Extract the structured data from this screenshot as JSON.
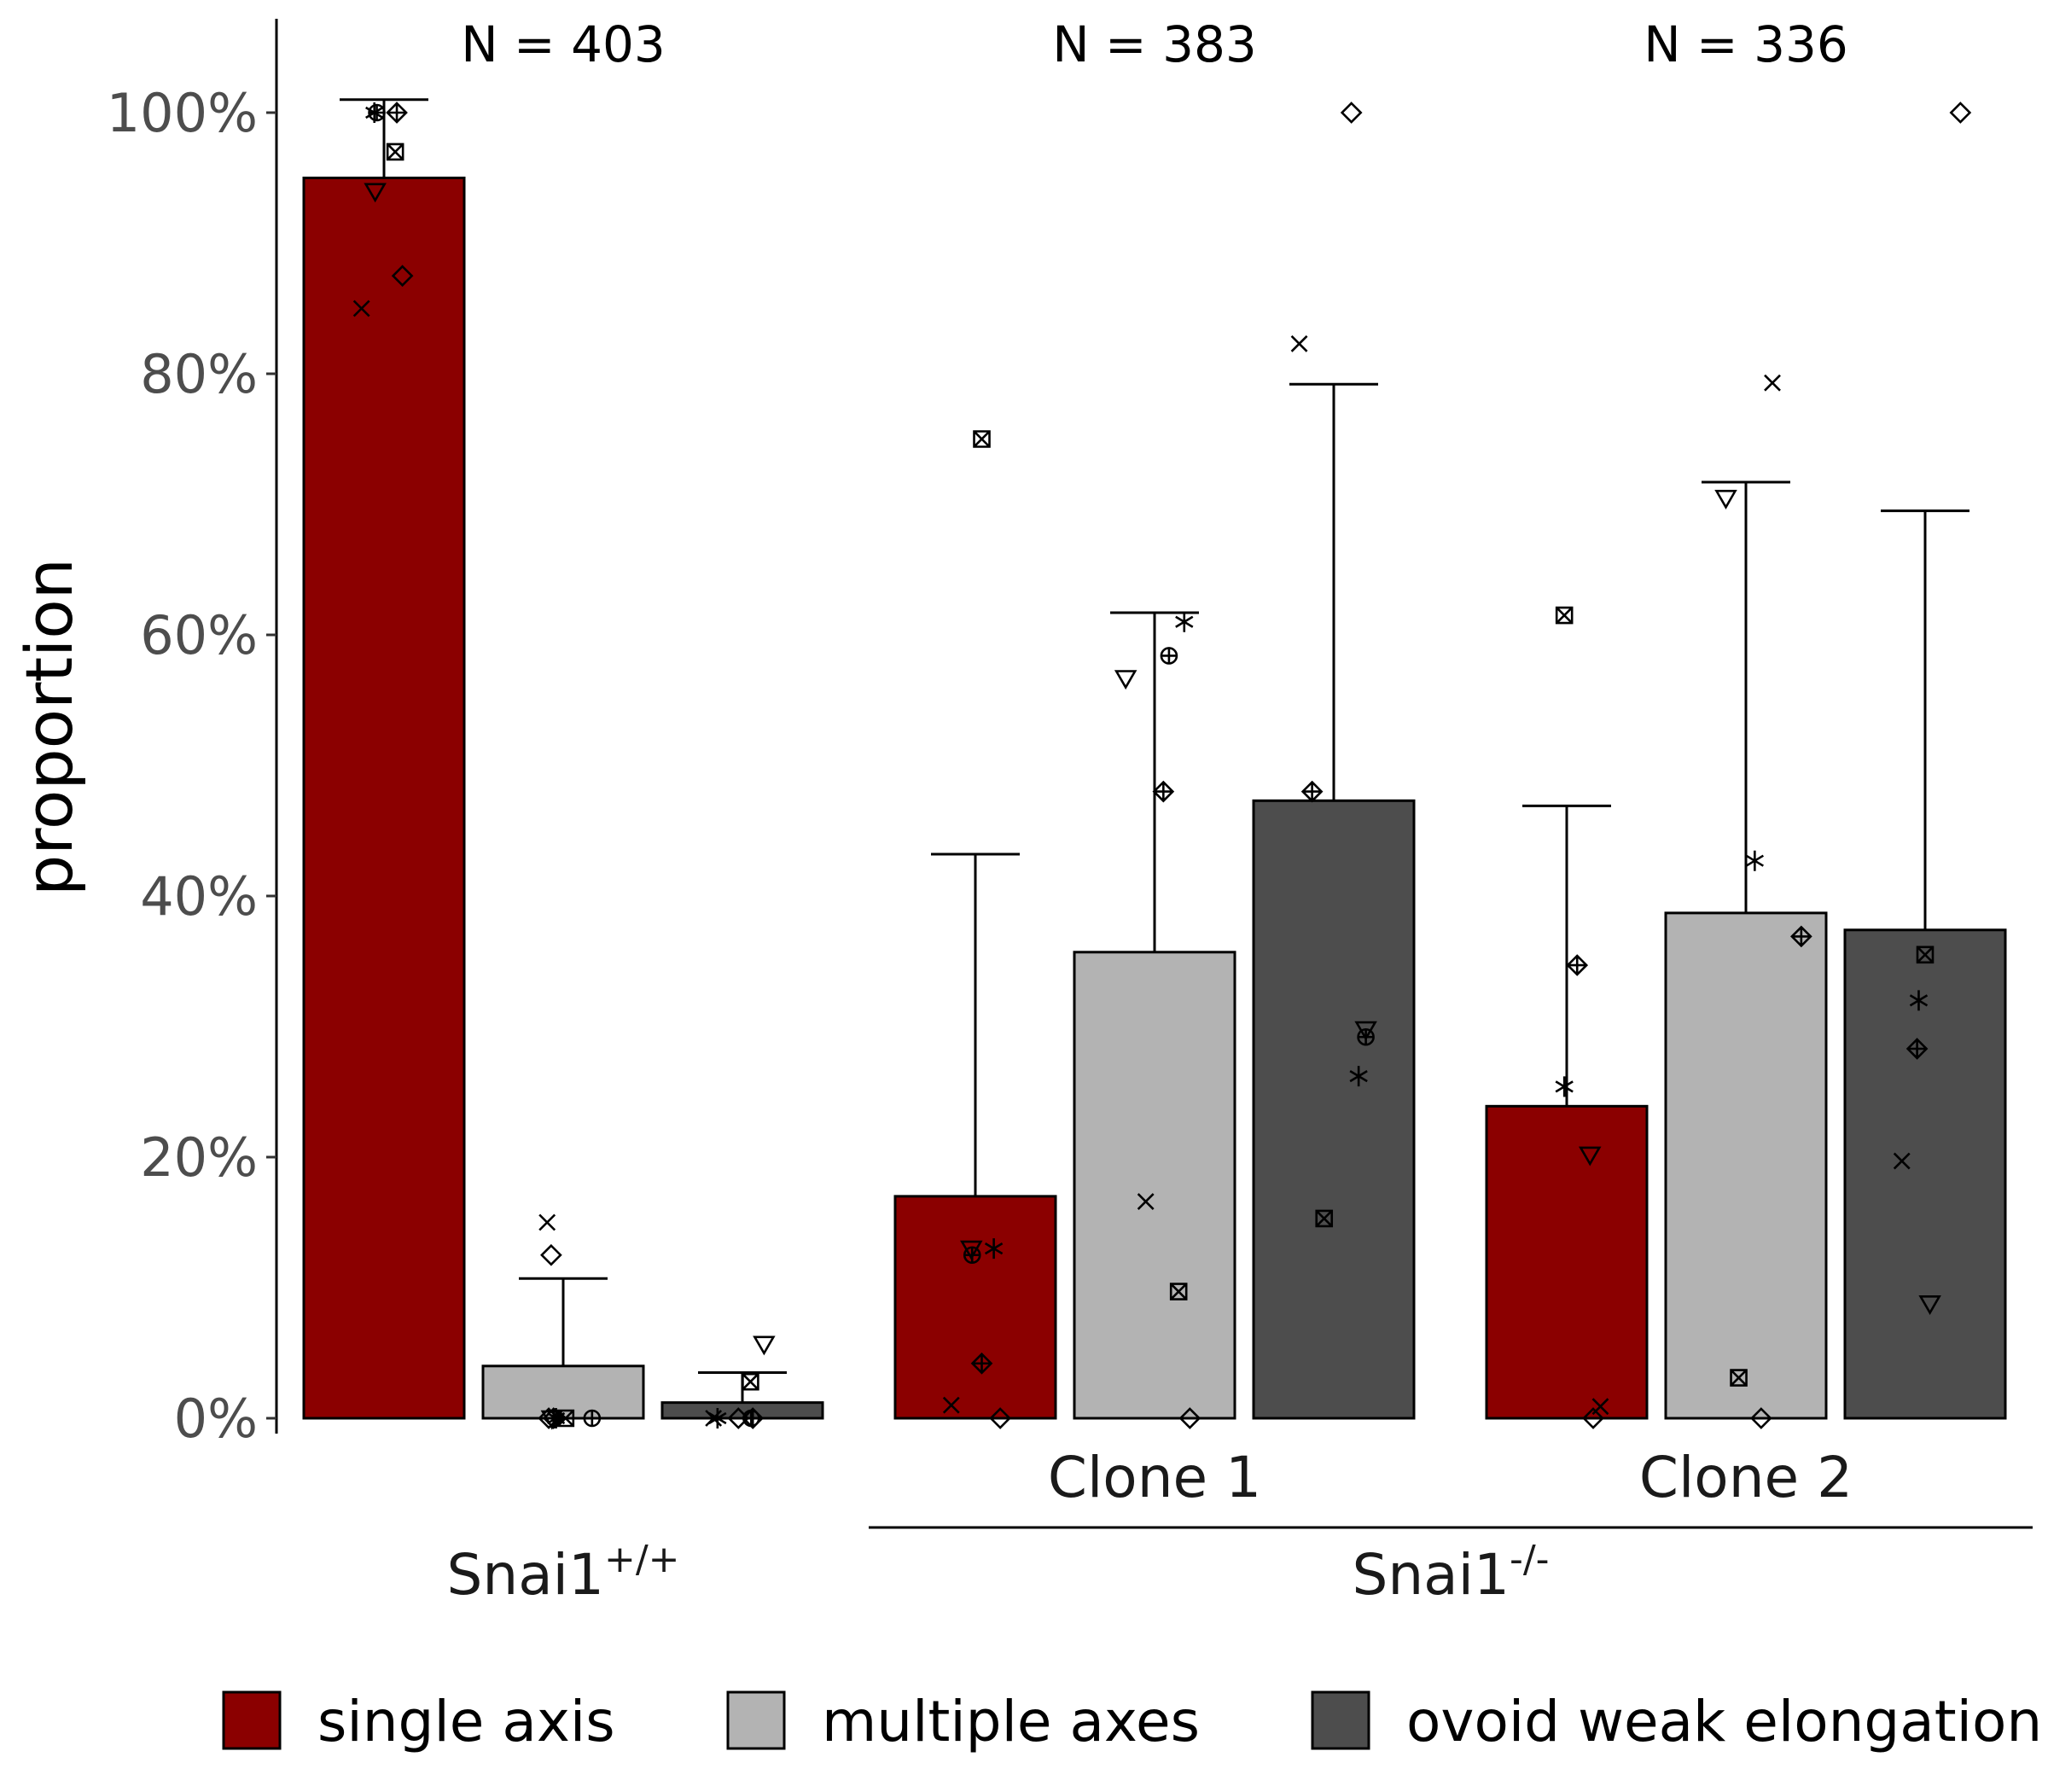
{
  "chart_data": {
    "type": "bar",
    "ylabel": "proportion",
    "xlabel": "",
    "ylim": [
      -0.02,
      1.07
    ],
    "y_ticks": [
      "0%",
      "20%",
      "40%",
      "60%",
      "80%",
      "100%"
    ],
    "grid": false,
    "legend_position": "bottom",
    "series": [
      {
        "name": "single axis",
        "color": "#8B0000"
      },
      {
        "name": "multiple axes",
        "color": "#B3B3B3"
      },
      {
        "name": "ovoid weak elongation",
        "color": "#4D4D4D"
      }
    ],
    "categories": [
      "Snai1+/+",
      "Clone 1",
      "Clone 2"
    ],
    "genotype_labels": {
      "wild_type": {
        "base": "Snai1",
        "sup": "+/+"
      },
      "knockout": {
        "base": "Snai1",
        "sup": "-/-"
      }
    },
    "clone_labels": [
      "Clone 1",
      "Clone 2"
    ],
    "n_labels": [
      "N = 403",
      "N = 383",
      "N = 336"
    ],
    "groups": [
      {
        "name": "Snai1+/+",
        "bars": [
          {
            "series": "single axis",
            "value": 0.95,
            "error_upper": 1.01,
            "points": [
              {
                "x": -0.28,
                "y": 0.85,
                "marker": "x"
              },
              {
                "x": -0.11,
                "y": 0.94,
                "marker": "triangle-down"
              },
              {
                "x": -0.12,
                "y": 1.0,
                "marker": "asterisk"
              },
              {
                "x": -0.09,
                "y": 1.0,
                "marker": "circle-plus"
              },
              {
                "x": 0.14,
                "y": 0.97,
                "marker": "square-x"
              },
              {
                "x": 0.16,
                "y": 1.0,
                "marker": "diamond-plus"
              },
              {
                "x": 0.23,
                "y": 0.875,
                "marker": "diamond"
              }
            ]
          },
          {
            "series": "multiple axes",
            "value": 0.04,
            "error_upper": 0.107,
            "points": [
              {
                "x": -0.2,
                "y": 0.15,
                "marker": "x"
              },
              {
                "x": -0.15,
                "y": 0.125,
                "marker": "diamond"
              },
              {
                "x": -0.14,
                "y": 0.0,
                "marker": "triangle-down"
              },
              {
                "x": -0.18,
                "y": 0.0,
                "marker": "diamond"
              },
              {
                "x": -0.09,
                "y": 0.0,
                "marker": "asterisk"
              },
              {
                "x": 0.03,
                "y": 0.0,
                "marker": "square-x"
              },
              {
                "x": 0.36,
                "y": 0.0,
                "marker": "circle-plus"
              },
              {
                "x": -0.12,
                "y": 0.0,
                "marker": "diamond-plus"
              }
            ]
          },
          {
            "series": "ovoid weak elongation",
            "value": 0.012,
            "error_upper": 0.035,
            "points": [
              {
                "x": 0.27,
                "y": 0.057,
                "marker": "triangle-down"
              },
              {
                "x": 0.1,
                "y": 0.028,
                "marker": "square-x"
              },
              {
                "x": -0.36,
                "y": 0.0,
                "marker": "x"
              },
              {
                "x": -0.31,
                "y": 0.0,
                "marker": "asterisk"
              },
              {
                "x": -0.05,
                "y": 0.0,
                "marker": "diamond"
              },
              {
                "x": 0.13,
                "y": 0.0,
                "marker": "diamond-plus"
              },
              {
                "x": 0.11,
                "y": 0.0,
                "marker": "circle-plus"
              }
            ]
          }
        ]
      },
      {
        "name": "Clone 1",
        "bars": [
          {
            "series": "single axis",
            "value": 0.17,
            "error_upper": 0.432,
            "points": [
              {
                "x": -0.3,
                "y": 0.01,
                "marker": "x"
              },
              {
                "x": -0.05,
                "y": 0.13,
                "marker": "triangle-down"
              },
              {
                "x": -0.04,
                "y": 0.125,
                "marker": "circle-plus"
              },
              {
                "x": 0.08,
                "y": 0.75,
                "marker": "square-x"
              },
              {
                "x": 0.23,
                "y": 0.13,
                "marker": "asterisk"
              },
              {
                "x": 0.08,
                "y": 0.042,
                "marker": "diamond-plus"
              },
              {
                "x": 0.31,
                "y": 0.0,
                "marker": "diamond"
              }
            ]
          },
          {
            "series": "multiple axes",
            "value": 0.357,
            "error_upper": 0.617,
            "points": [
              {
                "x": -0.36,
                "y": 0.567,
                "marker": "triangle-down"
              },
              {
                "x": -0.11,
                "y": 0.166,
                "marker": "x"
              },
              {
                "x": 0.11,
                "y": 0.48,
                "marker": "diamond-plus"
              },
              {
                "x": 0.18,
                "y": 0.584,
                "marker": "circle-plus"
              },
              {
                "x": 0.37,
                "y": 0.61,
                "marker": "asterisk"
              },
              {
                "x": 0.3,
                "y": 0.097,
                "marker": "square-x"
              },
              {
                "x": 0.44,
                "y": 0.0,
                "marker": "diamond"
              }
            ]
          },
          {
            "series": "ovoid weak elongation",
            "value": 0.473,
            "error_upper": 0.792,
            "points": [
              {
                "x": -0.43,
                "y": 0.823,
                "marker": "x"
              },
              {
                "x": -0.27,
                "y": 0.48,
                "marker": "diamond-plus"
              },
              {
                "x": -0.12,
                "y": 0.153,
                "marker": "square-x"
              },
              {
                "x": 0.22,
                "y": 1.0,
                "marker": "diamond"
              },
              {
                "x": 0.31,
                "y": 0.262,
                "marker": "asterisk"
              },
              {
                "x": 0.4,
                "y": 0.298,
                "marker": "triangle-down"
              },
              {
                "x": 0.4,
                "y": 0.292,
                "marker": "circle-plus"
              }
            ]
          }
        ]
      },
      {
        "name": "Clone 2",
        "bars": [
          {
            "series": "single axis",
            "value": 0.239,
            "error_upper": 0.469,
            "points": [
              {
                "x": -0.03,
                "y": 0.615,
                "marker": "square-x"
              },
              {
                "x": 0.13,
                "y": 0.347,
                "marker": "diamond-plus"
              },
              {
                "x": -0.03,
                "y": 0.254,
                "marker": "asterisk"
              },
              {
                "x": 0.29,
                "y": 0.202,
                "marker": "triangle-down"
              },
              {
                "x": 0.33,
                "y": 0.0,
                "marker": "diamond"
              },
              {
                "x": 0.42,
                "y": 0.009,
                "marker": "x"
              }
            ]
          },
          {
            "series": "multiple axes",
            "value": 0.387,
            "error_upper": 0.717,
            "points": [
              {
                "x": -0.25,
                "y": 0.705,
                "marker": "triangle-down"
              },
              {
                "x": -0.09,
                "y": 0.031,
                "marker": "square-x"
              },
              {
                "x": 0.11,
                "y": 0.427,
                "marker": "asterisk"
              },
              {
                "x": 0.19,
                "y": 0.0,
                "marker": "diamond"
              },
              {
                "x": 0.33,
                "y": 0.793,
                "marker": "x"
              },
              {
                "x": 0.69,
                "y": 0.369,
                "marker": "diamond-plus"
              }
            ]
          },
          {
            "series": "ovoid weak elongation",
            "value": 0.374,
            "error_upper": 0.695,
            "points": [
              {
                "x": -0.29,
                "y": 0.197,
                "marker": "x"
              },
              {
                "x": -0.1,
                "y": 0.283,
                "marker": "diamond-plus"
              },
              {
                "x": -0.08,
                "y": 0.32,
                "marker": "asterisk"
              },
              {
                "x": 0.0,
                "y": 0.355,
                "marker": "square-x"
              },
              {
                "x": 0.06,
                "y": 0.088,
                "marker": "triangle-down"
              },
              {
                "x": 0.44,
                "y": 1.0,
                "marker": "diamond"
              }
            ]
          }
        ]
      }
    ]
  }
}
